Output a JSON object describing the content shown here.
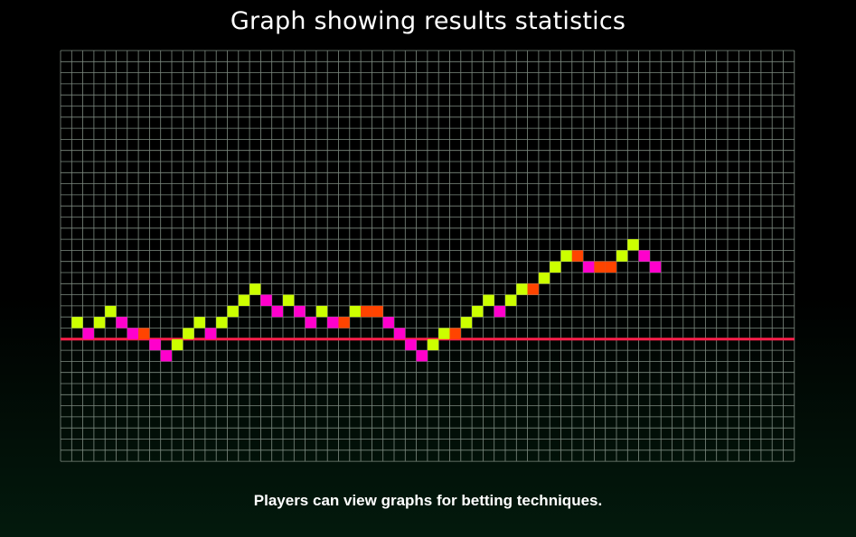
{
  "page_title": "Graph showing results statistics",
  "caption": "Players can view graphs for betting techniques.",
  "chart_data": {
    "type": "scatter",
    "title": "Graph showing results statistics",
    "xlabel": "",
    "ylabel": "",
    "grid": true,
    "legend": "none",
    "baseline": 0,
    "colors": {
      "background": "#000000",
      "grid": "#7d8a80",
      "baseline": "#ff1f4a",
      "win": "#ccff00",
      "loss": "#ff00cc",
      "push": "#ff4400"
    },
    "points": [
      {
        "x": 1,
        "y": 1,
        "kind": "win"
      },
      {
        "x": 2,
        "y": 0,
        "kind": "loss"
      },
      {
        "x": 3,
        "y": 1,
        "kind": "win"
      },
      {
        "x": 4,
        "y": 2,
        "kind": "win"
      },
      {
        "x": 5,
        "y": 1,
        "kind": "loss"
      },
      {
        "x": 6,
        "y": 0,
        "kind": "loss"
      },
      {
        "x": 7,
        "y": 0,
        "kind": "push"
      },
      {
        "x": 8,
        "y": -1,
        "kind": "loss"
      },
      {
        "x": 9,
        "y": -2,
        "kind": "loss"
      },
      {
        "x": 10,
        "y": -1,
        "kind": "win"
      },
      {
        "x": 11,
        "y": 0,
        "kind": "win"
      },
      {
        "x": 12,
        "y": 1,
        "kind": "win"
      },
      {
        "x": 13,
        "y": 0,
        "kind": "loss"
      },
      {
        "x": 14,
        "y": 1,
        "kind": "win"
      },
      {
        "x": 15,
        "y": 2,
        "kind": "win"
      },
      {
        "x": 16,
        "y": 3,
        "kind": "win"
      },
      {
        "x": 17,
        "y": 4,
        "kind": "win"
      },
      {
        "x": 18,
        "y": 3,
        "kind": "loss"
      },
      {
        "x": 19,
        "y": 2,
        "kind": "loss"
      },
      {
        "x": 20,
        "y": 3,
        "kind": "win"
      },
      {
        "x": 21,
        "y": 2,
        "kind": "loss"
      },
      {
        "x": 22,
        "y": 1,
        "kind": "loss"
      },
      {
        "x": 23,
        "y": 2,
        "kind": "win"
      },
      {
        "x": 24,
        "y": 1,
        "kind": "loss"
      },
      {
        "x": 25,
        "y": 1,
        "kind": "push"
      },
      {
        "x": 26,
        "y": 2,
        "kind": "win"
      },
      {
        "x": 27,
        "y": 2,
        "kind": "push"
      },
      {
        "x": 28,
        "y": 2,
        "kind": "push"
      },
      {
        "x": 29,
        "y": 1,
        "kind": "loss"
      },
      {
        "x": 30,
        "y": 0,
        "kind": "loss"
      },
      {
        "x": 31,
        "y": -1,
        "kind": "loss"
      },
      {
        "x": 32,
        "y": -2,
        "kind": "loss"
      },
      {
        "x": 33,
        "y": -1,
        "kind": "win"
      },
      {
        "x": 34,
        "y": 0,
        "kind": "win"
      },
      {
        "x": 35,
        "y": 0,
        "kind": "push"
      },
      {
        "x": 36,
        "y": 1,
        "kind": "win"
      },
      {
        "x": 37,
        "y": 2,
        "kind": "win"
      },
      {
        "x": 38,
        "y": 3,
        "kind": "win"
      },
      {
        "x": 39,
        "y": 2,
        "kind": "loss"
      },
      {
        "x": 40,
        "y": 3,
        "kind": "win"
      },
      {
        "x": 41,
        "y": 4,
        "kind": "win"
      },
      {
        "x": 42,
        "y": 4,
        "kind": "push"
      },
      {
        "x": 43,
        "y": 5,
        "kind": "win"
      },
      {
        "x": 44,
        "y": 6,
        "kind": "win"
      },
      {
        "x": 45,
        "y": 7,
        "kind": "win"
      },
      {
        "x": 46,
        "y": 7,
        "kind": "push"
      },
      {
        "x": 47,
        "y": 6,
        "kind": "loss"
      },
      {
        "x": 48,
        "y": 6,
        "kind": "push"
      },
      {
        "x": 49,
        "y": 6,
        "kind": "push"
      },
      {
        "x": 50,
        "y": 7,
        "kind": "win"
      },
      {
        "x": 51,
        "y": 8,
        "kind": "win"
      },
      {
        "x": 52,
        "y": 7,
        "kind": "loss"
      },
      {
        "x": 53,
        "y": 6,
        "kind": "loss"
      }
    ]
  }
}
